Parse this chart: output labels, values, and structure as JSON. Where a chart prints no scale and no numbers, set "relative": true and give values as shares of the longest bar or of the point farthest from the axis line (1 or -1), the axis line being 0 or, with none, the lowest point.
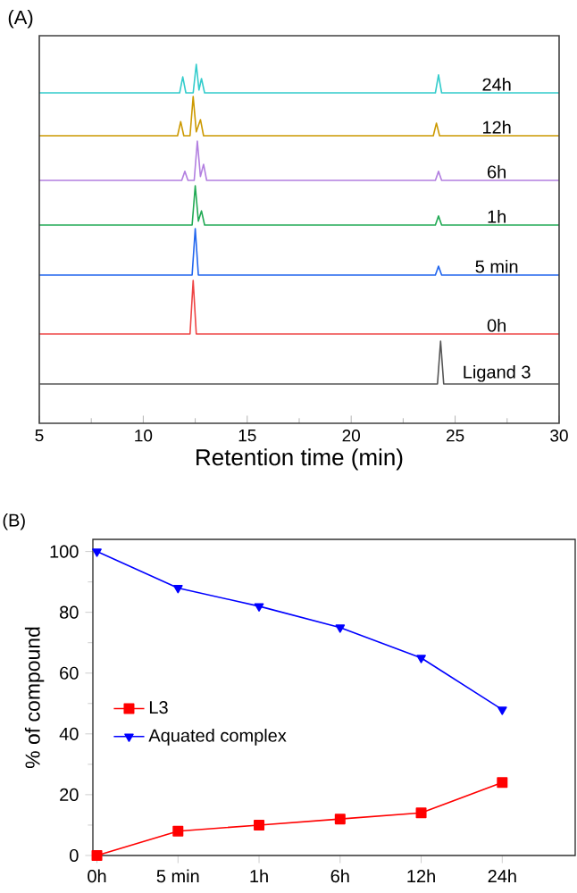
{
  "chart_data": [
    {
      "type": "line",
      "title": "(A)",
      "relative": true,
      "xlim": [
        5,
        30
      ],
      "tick_labels": false,
      "x": [
        5,
        11.75,
        11.9,
        12.05,
        12.4,
        12.55,
        12.68,
        12.8,
        12.95,
        24.05,
        24.2,
        24.35,
        30
      ],
      "series": [
        {
          "color": "#33cccc",
          "values": [
            0,
            0,
            0.56,
            0,
            0,
            1,
            0.1,
            0.5,
            0,
            0,
            0.63,
            0,
            0
          ]
        }
      ],
      "annotations": [
        "24h"
      ]
    },
    {
      "type": "line",
      "relative": true,
      "xlim": [
        5,
        30
      ],
      "tick_labels": false,
      "x": [
        5,
        11.65,
        11.8,
        11.95,
        12.25,
        12.4,
        12.55,
        12.75,
        12.9,
        23.95,
        24.1,
        24.25,
        30
      ],
      "series": [
        {
          "color": "#cc9900",
          "values": [
            0,
            0,
            0.36,
            0,
            0,
            1,
            0.1,
            0.41,
            0,
            0,
            0.32,
            0,
            0
          ]
        }
      ],
      "annotations": [
        "12h"
      ]
    },
    {
      "type": "line",
      "relative": true,
      "xlim": [
        5,
        30
      ],
      "tick_labels": false,
      "x": [
        5,
        11.85,
        12.0,
        12.15,
        12.45,
        12.6,
        12.75,
        12.9,
        13.05,
        24.05,
        24.2,
        24.35,
        30
      ],
      "series": [
        {
          "color": "#b27fe0",
          "values": [
            0,
            0,
            0.23,
            0,
            0,
            1,
            0.1,
            0.41,
            0,
            0,
            0.23,
            0,
            0
          ]
        }
      ],
      "annotations": [
        "6h"
      ]
    },
    {
      "type": "line",
      "relative": true,
      "xlim": [
        5,
        30
      ],
      "tick_labels": false,
      "x": [
        5,
        12.35,
        12.5,
        12.65,
        12.8,
        12.95,
        24.05,
        24.2,
        24.35,
        30
      ],
      "series": [
        {
          "color": "#22aa55",
          "values": [
            0,
            0,
            1,
            0.1,
            0.36,
            0,
            0,
            0.23,
            0,
            0
          ]
        }
      ],
      "annotations": [
        "1h"
      ]
    },
    {
      "type": "line",
      "relative": true,
      "xlim": [
        5,
        30
      ],
      "tick_labels": false,
      "x": [
        5,
        12.35,
        12.5,
        12.65,
        24.05,
        24.2,
        24.35,
        30
      ],
      "series": [
        {
          "color": "#2266ee",
          "values": [
            0,
            0,
            1,
            0,
            0,
            0.19,
            0,
            0
          ]
        }
      ],
      "annotations": [
        "5 min"
      ]
    },
    {
      "type": "line",
      "relative": true,
      "xlim": [
        5,
        30
      ],
      "tick_labels": false,
      "x": [
        5,
        12.25,
        12.4,
        12.55,
        30
      ],
      "series": [
        {
          "color": "#ee4444",
          "values": [
            0,
            0,
            1,
            0,
            0
          ]
        }
      ],
      "annotations": [
        "0h"
      ]
    },
    {
      "type": "line",
      "relative": true,
      "xlim": [
        5,
        30
      ],
      "tick_labels": "x",
      "xticks": [
        5,
        10,
        15,
        20,
        25,
        30
      ],
      "xlabel": "Retention time (min)",
      "x": [
        5,
        24.15,
        24.3,
        24.45,
        30
      ],
      "series": [
        {
          "color": "#555555",
          "values": [
            0,
            0,
            1,
            0,
            0
          ]
        }
      ],
      "annotations": [
        "Ligand 3"
      ]
    },
    {
      "type": "line",
      "title": "(B)",
      "categories": [
        "0h",
        "5 min",
        "1h",
        "6h",
        "12h",
        "24h"
      ],
      "ylabel": "% of compound",
      "ylim": [
        0,
        104
      ],
      "yticks": [
        0,
        20,
        40,
        60,
        80,
        100
      ],
      "legend": "left",
      "series": [
        {
          "name": "L3",
          "color": "#ff0000",
          "marker": "square",
          "values": [
            0,
            8,
            10,
            12,
            14,
            24
          ]
        },
        {
          "name": "Aquated complex",
          "color": "#0000ff",
          "marker": "triangle",
          "values": [
            100,
            88,
            82,
            75,
            65,
            48
          ]
        }
      ]
    }
  ]
}
